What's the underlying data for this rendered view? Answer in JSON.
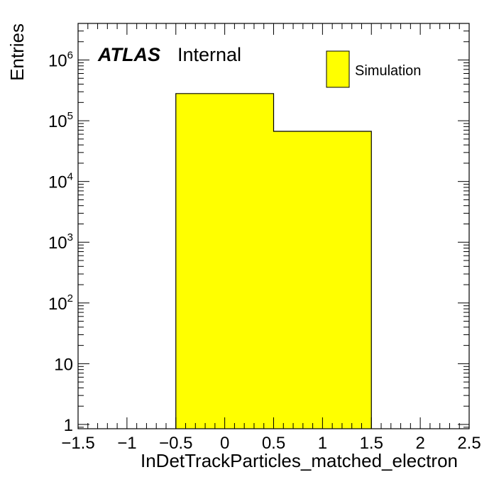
{
  "chart_data": {
    "type": "bar",
    "histogram": true,
    "bins": [
      {
        "low": -0.5,
        "high": 0.5,
        "value": 280000
      },
      {
        "low": 0.5,
        "high": 1.5,
        "value": 67000
      }
    ],
    "xlabel": "InDetTrackParticles_matched_electron",
    "ylabel": "Entries",
    "xlim": [
      -1.5,
      2.5
    ],
    "ylim": [
      0.85,
      4000000
    ],
    "yscale": "log",
    "fill_color": "#ffff00",
    "line_color": "#000000",
    "x_ticks": [
      -1.5,
      -1,
      -0.5,
      0,
      0.5,
      1,
      1.5,
      2,
      2.5
    ],
    "x_tick_labels": [
      "−1.5",
      "−1",
      "−0.5",
      "0",
      "0.5",
      "1",
      "1.5",
      "2",
      "2.5"
    ],
    "y_ticks": [
      {
        "value": 1,
        "base": "1",
        "exp": ""
      },
      {
        "value": 10,
        "base": "10",
        "exp": ""
      },
      {
        "value": 100,
        "base": "10",
        "exp": "2"
      },
      {
        "value": 1000,
        "base": "10",
        "exp": "3"
      },
      {
        "value": 10000,
        "base": "10",
        "exp": "4"
      },
      {
        "value": 100000,
        "base": "10",
        "exp": "5"
      },
      {
        "value": 1000000,
        "base": "10",
        "exp": "6"
      }
    ],
    "legend": {
      "entries": [
        "Simulation"
      ],
      "position": "top-right"
    }
  },
  "labels": {
    "atlas": "ATLAS",
    "internal": "Internal"
  }
}
